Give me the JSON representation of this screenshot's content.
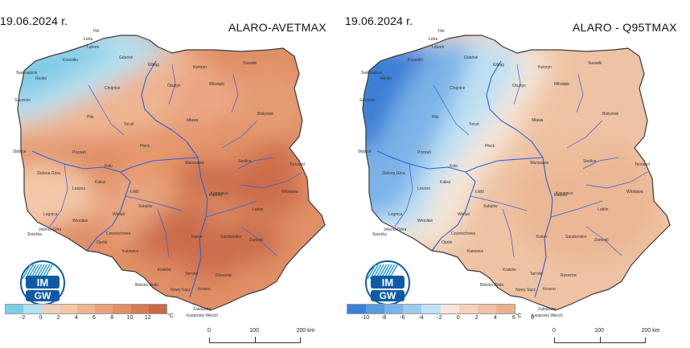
{
  "colors": {
    "left_palette": [
      "#7ecbe6",
      "#b5e0ef",
      "#e7d2bf",
      "#f3c7a7",
      "#eeb591",
      "#e9a27b",
      "#e08f66",
      "#d57b53",
      "#c9694a"
    ],
    "right_palette": [
      "#3b7fd6",
      "#5b9ae0",
      "#7bb3e8",
      "#9ccaee",
      "#bfe1f3",
      "#f6e6d8",
      "#f2d2ba",
      "#eec3a4",
      "#e9b28f"
    ],
    "river": "#2b5fd8",
    "border": "#3a3a3a"
  },
  "left_panel": {
    "date": "19.06.2024 r.",
    "title": "ALARO-AVETMAX",
    "legend_ticks": [
      "-2",
      "0",
      "2",
      "4",
      "6",
      "8",
      "10",
      "12"
    ],
    "legend_unit": "°C",
    "zakopane": "Zakopane",
    "kasprowy": "Kasprowy Wierch",
    "logo_top": "IM",
    "logo_bottom": "GW",
    "cities": [
      {
        "name": "Świnoujście"
      },
      {
        "name": "Szczecin"
      },
      {
        "name": "Słubice"
      },
      {
        "name": "Zielona Góra"
      },
      {
        "name": "Legnica"
      },
      {
        "name": "Wrocław"
      },
      {
        "name": "Jelenia Góra"
      },
      {
        "name": "Śnieżka"
      },
      {
        "name": "Opole"
      },
      {
        "name": "Katowice"
      },
      {
        "name": "Kraków"
      },
      {
        "name": "Bielsko-Biała"
      },
      {
        "name": "Tarnów"
      },
      {
        "name": "Nowy Sącz"
      },
      {
        "name": "Rzeszów"
      },
      {
        "name": "Krosno"
      },
      {
        "name": "Kielce"
      },
      {
        "name": "Sandomierz"
      },
      {
        "name": "Zamość"
      },
      {
        "name": "Lublin"
      },
      {
        "name": "Radom"
      },
      {
        "name": "Częstochowa"
      },
      {
        "name": "Sulejów"
      },
      {
        "name": "Łódź"
      },
      {
        "name": "Kalisz"
      },
      {
        "name": "Leszno"
      },
      {
        "name": "Poznań"
      },
      {
        "name": "Koło"
      },
      {
        "name": "Płock"
      },
      {
        "name": "Warszawa"
      },
      {
        "name": "Siedlce"
      },
      {
        "name": "Terespol"
      },
      {
        "name": "Włodawa"
      },
      {
        "name": "Kozienice"
      },
      {
        "name": "Białystok"
      },
      {
        "name": "Mława"
      },
      {
        "name": "Toruń"
      },
      {
        "name": "Piła"
      },
      {
        "name": "Chojnice"
      },
      {
        "name": "Gdańsk"
      },
      {
        "name": "Elbląg"
      },
      {
        "name": "Kętrzyn"
      },
      {
        "name": "Suwałki"
      },
      {
        "name": "Mikołajki"
      },
      {
        "name": "Olsztyn"
      },
      {
        "name": "Łeba"
      },
      {
        "name": "Lębork"
      },
      {
        "name": "Koszalin"
      },
      {
        "name": "Resko"
      },
      {
        "name": "Wieluń"
      },
      {
        "name": "Hel"
      }
    ]
  },
  "right_panel": {
    "date": "19.06.2024 r.",
    "title": "ALARO - Q95TMAX",
    "legend_ticks": [
      "-10",
      "-8",
      "-6",
      "-4",
      "-2",
      "0",
      "2",
      "4",
      "6",
      "8"
    ],
    "legend_unit": "°C",
    "zakopane": "Zakopane",
    "kasprowy": "Kasprowy Wierch",
    "logo_top": "IM",
    "logo_bottom": "GW",
    "cities": [
      {
        "name": "Świnoujście"
      },
      {
        "name": "Szczecin"
      },
      {
        "name": "Słubice"
      },
      {
        "name": "Zielona Góra"
      },
      {
        "name": "Legnica"
      },
      {
        "name": "Wrocław"
      },
      {
        "name": "Jelenia Góra"
      },
      {
        "name": "Śnieżka"
      },
      {
        "name": "Opole"
      },
      {
        "name": "Katowice"
      },
      {
        "name": "Kraków"
      },
      {
        "name": "Bielsko-Biała"
      },
      {
        "name": "Tarnów"
      },
      {
        "name": "Nowy Sącz"
      },
      {
        "name": "Rzeszów"
      },
      {
        "name": "Krosno"
      },
      {
        "name": "Kielce"
      },
      {
        "name": "Sandomierz"
      },
      {
        "name": "Zamość"
      },
      {
        "name": "Lublin"
      },
      {
        "name": "Radom"
      },
      {
        "name": "Częstochowa"
      },
      {
        "name": "Sulejów"
      },
      {
        "name": "Łódź"
      },
      {
        "name": "Kalisz"
      },
      {
        "name": "Leszno"
      },
      {
        "name": "Poznań"
      },
      {
        "name": "Koło"
      },
      {
        "name": "Płock"
      },
      {
        "name": "Warszawa"
      },
      {
        "name": "Siedlce"
      },
      {
        "name": "Terespol"
      },
      {
        "name": "Włodawa"
      },
      {
        "name": "Kozienice"
      },
      {
        "name": "Białystok"
      },
      {
        "name": "Mława"
      },
      {
        "name": "Toruń"
      },
      {
        "name": "Piła"
      },
      {
        "name": "Chojnice"
      },
      {
        "name": "Gdańsk"
      },
      {
        "name": "Elbląg"
      },
      {
        "name": "Kętrzyn"
      },
      {
        "name": "Suwałki"
      },
      {
        "name": "Mikołajki"
      },
      {
        "name": "Olsztyn"
      },
      {
        "name": "Łeba"
      },
      {
        "name": "Lębork"
      },
      {
        "name": "Koszalin"
      },
      {
        "name": "Resko"
      },
      {
        "name": "Wieluń"
      },
      {
        "name": "Hel"
      }
    ]
  },
  "scale_bar": {
    "labels": [
      "0",
      "100",
      "200 km"
    ]
  }
}
